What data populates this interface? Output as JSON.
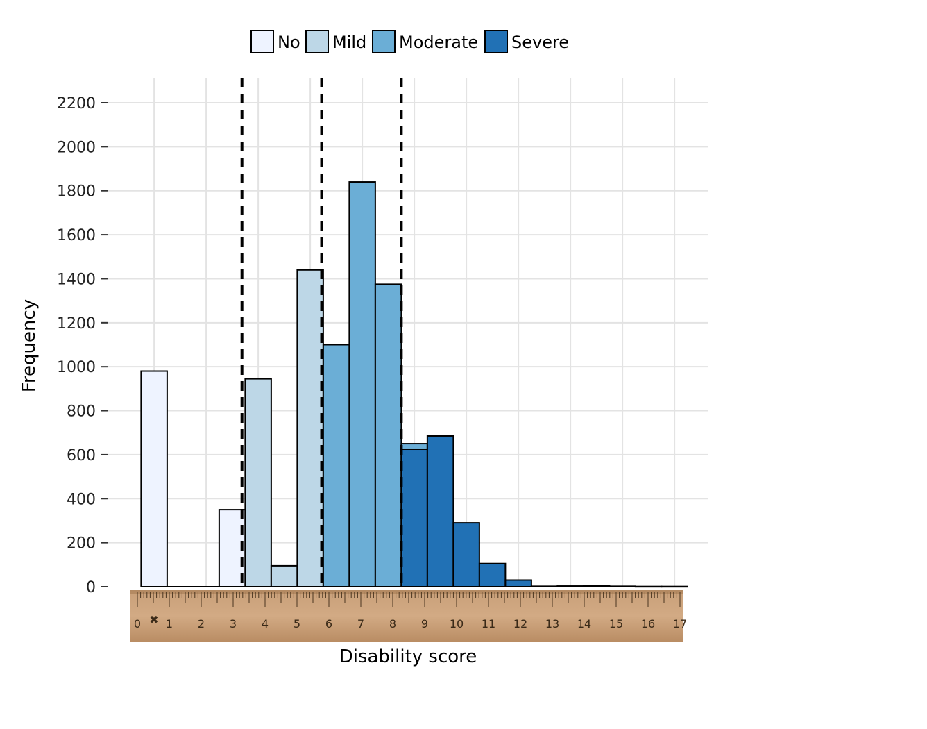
{
  "chart_data": {
    "type": "bar",
    "title": "",
    "xlabel": "Disability score",
    "ylabel": "Frequency",
    "ylim": [
      0,
      2300
    ],
    "yticks": [
      0,
      200,
      400,
      600,
      800,
      1000,
      1200,
      1400,
      1600,
      1800,
      2000,
      2200
    ],
    "grid": true,
    "legend_position": "top",
    "legend": [
      {
        "name": "No",
        "color": "#eef3ff"
      },
      {
        "name": "Mild",
        "color": "#bdd7e7"
      },
      {
        "name": "Moderate",
        "color": "#6baed6"
      },
      {
        "name": "Severe",
        "color": "#2171b5"
      }
    ],
    "bin_width": 0.8,
    "bars": [
      {
        "x": 0.2,
        "value": 980,
        "series": "No"
      },
      {
        "x": 2.6,
        "value": 350,
        "series": "No"
      },
      {
        "x": 3.4,
        "value": 945,
        "series": "Mild"
      },
      {
        "x": 4.2,
        "value": 95,
        "series": "Mild"
      },
      {
        "x": 5.0,
        "value": 1440,
        "series": "Mild"
      },
      {
        "x": 5.8,
        "value": 1100,
        "series": "Moderate"
      },
      {
        "x": 6.6,
        "value": 1840,
        "series": "Moderate"
      },
      {
        "x": 7.4,
        "value": 1375,
        "series": "Moderate"
      },
      {
        "x": 8.2,
        "value": 650,
        "series": "Moderate"
      },
      {
        "x": 8.2,
        "value": 625,
        "series": "Severe"
      },
      {
        "x": 9.0,
        "value": 685,
        "series": "Severe"
      },
      {
        "x": 9.8,
        "value": 290,
        "series": "Severe"
      },
      {
        "x": 10.6,
        "value": 105,
        "series": "Severe"
      },
      {
        "x": 11.4,
        "value": 30,
        "series": "Severe"
      },
      {
        "x": 12.2,
        "value": 2,
        "series": "Severe"
      },
      {
        "x": 13.0,
        "value": 3,
        "series": "Severe"
      },
      {
        "x": 13.8,
        "value": 5,
        "series": "Severe"
      },
      {
        "x": 14.6,
        "value": 2,
        "series": "Severe"
      },
      {
        "x": 15.4,
        "value": 1,
        "series": "Severe"
      },
      {
        "x": 16.2,
        "value": 1,
        "series": "Severe"
      }
    ],
    "cutoffs": [
      3.3,
      5.75,
      8.2
    ],
    "x_gridlines": [
      0.6,
      2.2,
      3.8,
      5.4,
      7.0,
      8.6,
      10.2,
      11.8,
      13.4,
      15.0,
      16.6
    ],
    "ruler_ticks": [
      "0",
      "1",
      "2",
      "3",
      "4",
      "5",
      "6",
      "7",
      "8",
      "9",
      "10",
      "11",
      "12",
      "13",
      "14",
      "15",
      "16",
      "17"
    ]
  }
}
